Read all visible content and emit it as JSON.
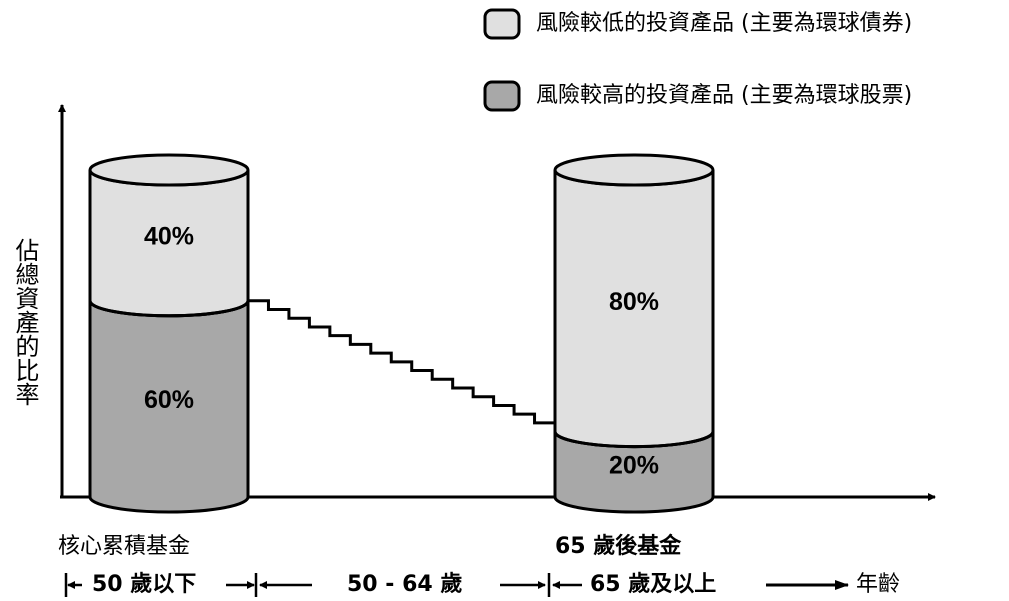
{
  "legend": {
    "low": {
      "label": "風險較低的投資產品 (主要為環球債券)",
      "color": "#e0e0e0"
    },
    "high": {
      "label": "風險較高的投資產品 (主要為環球股票)",
      "color": "#a8a8a8"
    }
  },
  "y_axis_label": "佔總資產的比率",
  "funds": [
    {
      "name": "核心累積基金"
    },
    {
      "name": "65 歲後基金"
    }
  ],
  "age_ranges": {
    "r1": "50 歲以下",
    "r2": "50 - 64 歲",
    "r3": "65 歲及以上",
    "axis": "年齡"
  },
  "chart_data": {
    "type": "bar",
    "stacked": true,
    "categories": [
      "核心累積基金",
      "65 歲後基金"
    ],
    "series": [
      {
        "name": "風險較高的投資產品 (主要為環球股票)",
        "values": [
          60,
          20
        ],
        "labels": [
          "60%",
          "20%"
        ],
        "color": "#a8a8a8"
      },
      {
        "name": "風險較低的投資產品 (主要為環球債券)",
        "values": [
          40,
          80
        ],
        "labels": [
          "40%",
          "80%"
        ],
        "color": "#e0e0e0"
      }
    ],
    "ylim": [
      0,
      100
    ],
    "transition": {
      "from": 60,
      "to": 20,
      "steps": 15
    },
    "ylabel": "佔總資產的比率",
    "xlabel": "年齡",
    "legend_position": "top-right",
    "grid": false
  }
}
